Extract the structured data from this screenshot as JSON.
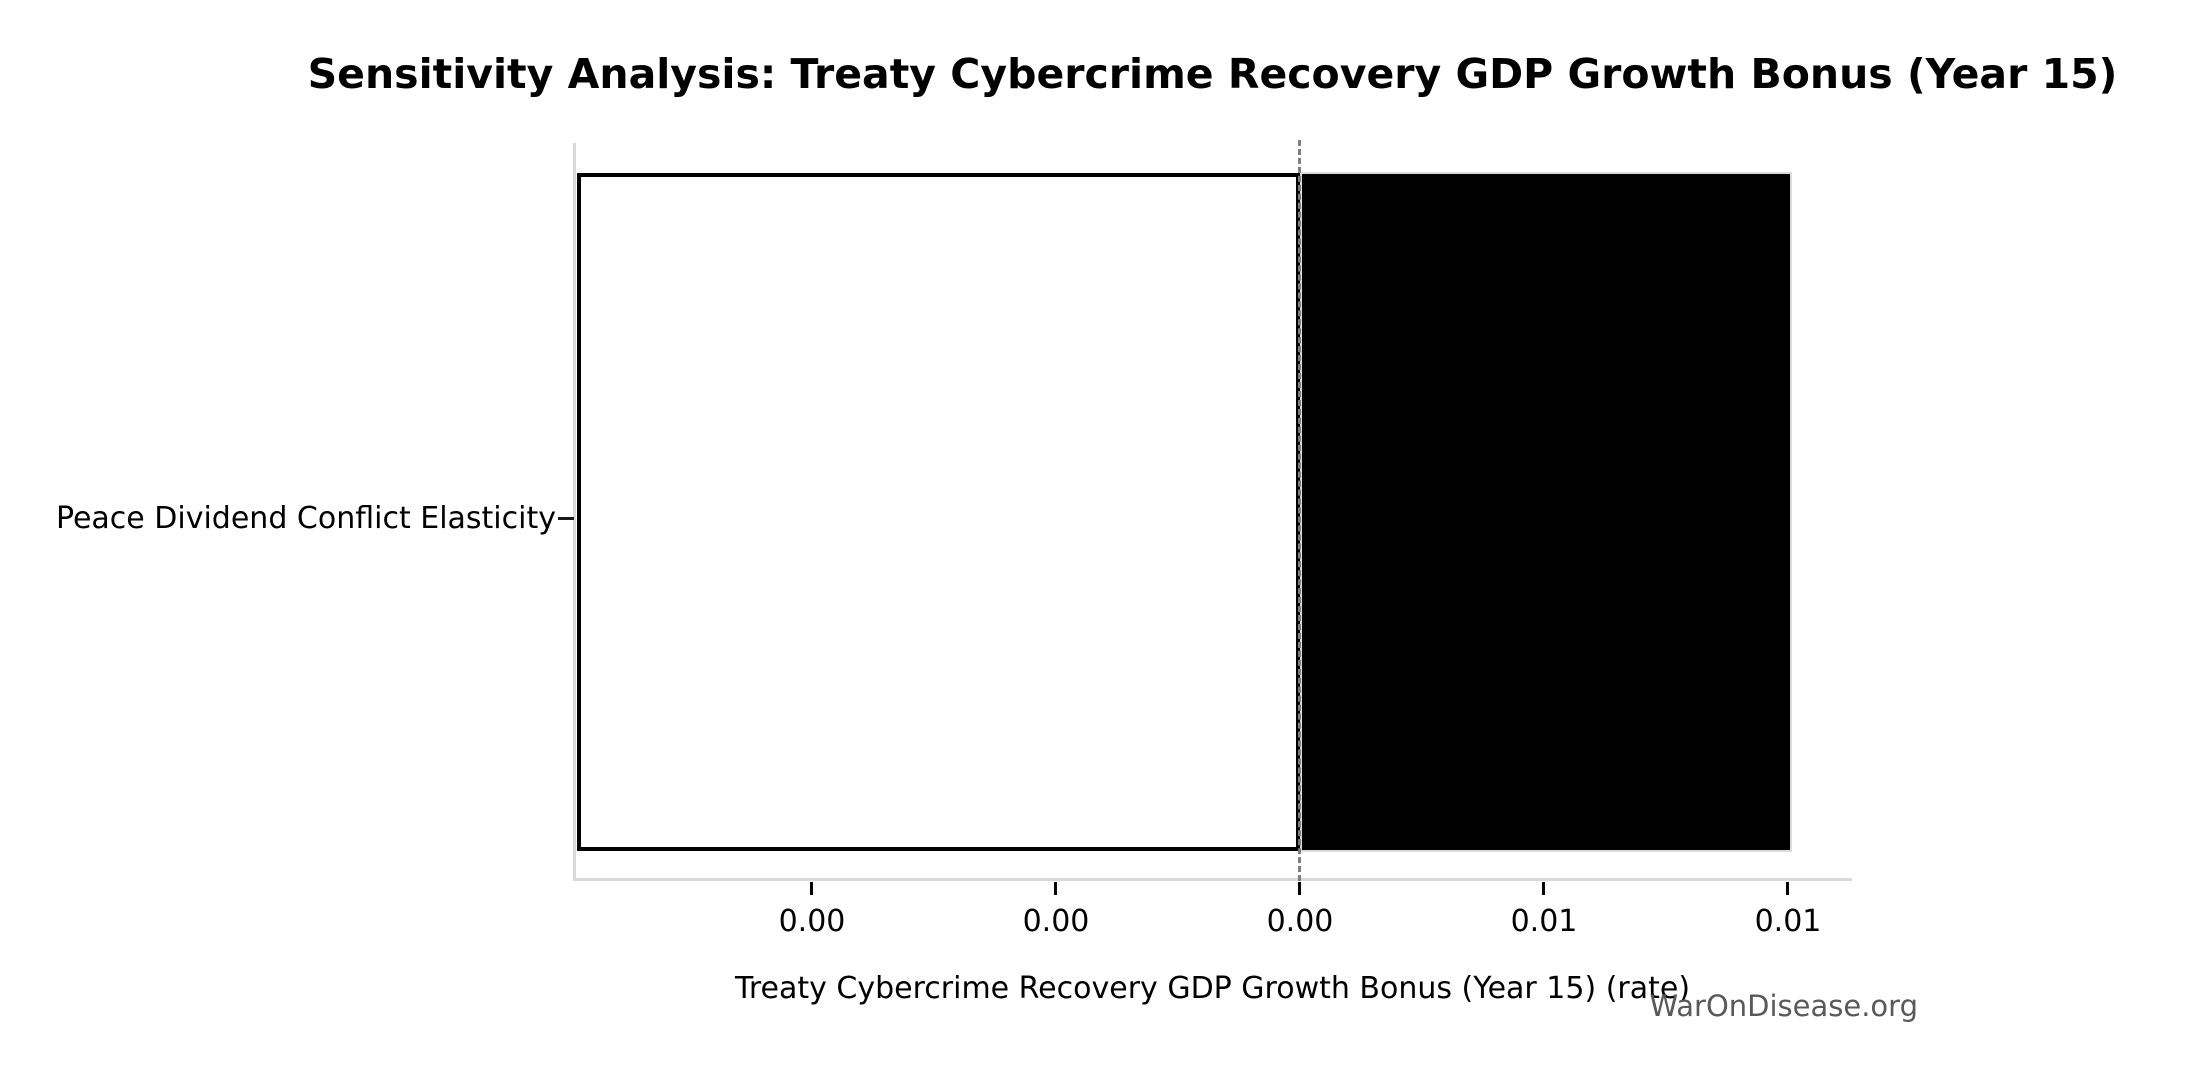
{
  "chart_data": {
    "type": "bar",
    "orientation": "horizontal",
    "title": "Sensitivity Analysis: Treaty Cybercrime Recovery GDP Growth Bonus (Year 15)",
    "xlabel": "Treaty Cybercrime Recovery GDP Growth Bonus (Year 15) (rate)",
    "ylabel": "",
    "categories": [
      "Peace Dividend Conflict Elasticity"
    ],
    "series": [
      {
        "name": "low-range-bar",
        "category": "Peace Dividend Conflict Elasticity",
        "from": -0.0025,
        "to": 0.005,
        "fill": "#ffffff",
        "edge": "#000000"
      },
      {
        "name": "high-range-bar",
        "category": "Peace Dividend Conflict Elasticity",
        "from": 0.005,
        "to": 0.0105,
        "fill": "#000000",
        "edge": "#dcdcdc"
      }
    ],
    "base_value": 0.005,
    "baseline_style": "dashed-vertical",
    "x_tick_labels": [
      "0.00",
      "0.00",
      "0.00",
      "0.01",
      "0.01"
    ],
    "x_tick_values": [
      0.0,
      0.0025,
      0.005,
      0.0075,
      0.01
    ],
    "xlim": [
      -0.0025,
      0.0106
    ],
    "grid": false,
    "legend": false,
    "watermark": "WarOnDisease.org",
    "colors": {
      "spine": "#d9d9d9",
      "tick": "#000000",
      "baseline": "#7f7f7f",
      "bar_low_fill": "#ffffff",
      "bar_low_edge": "#000000",
      "bar_high_fill": "#000000",
      "watermark": "#595959",
      "title": "#000000",
      "background": "#ffffff"
    }
  }
}
